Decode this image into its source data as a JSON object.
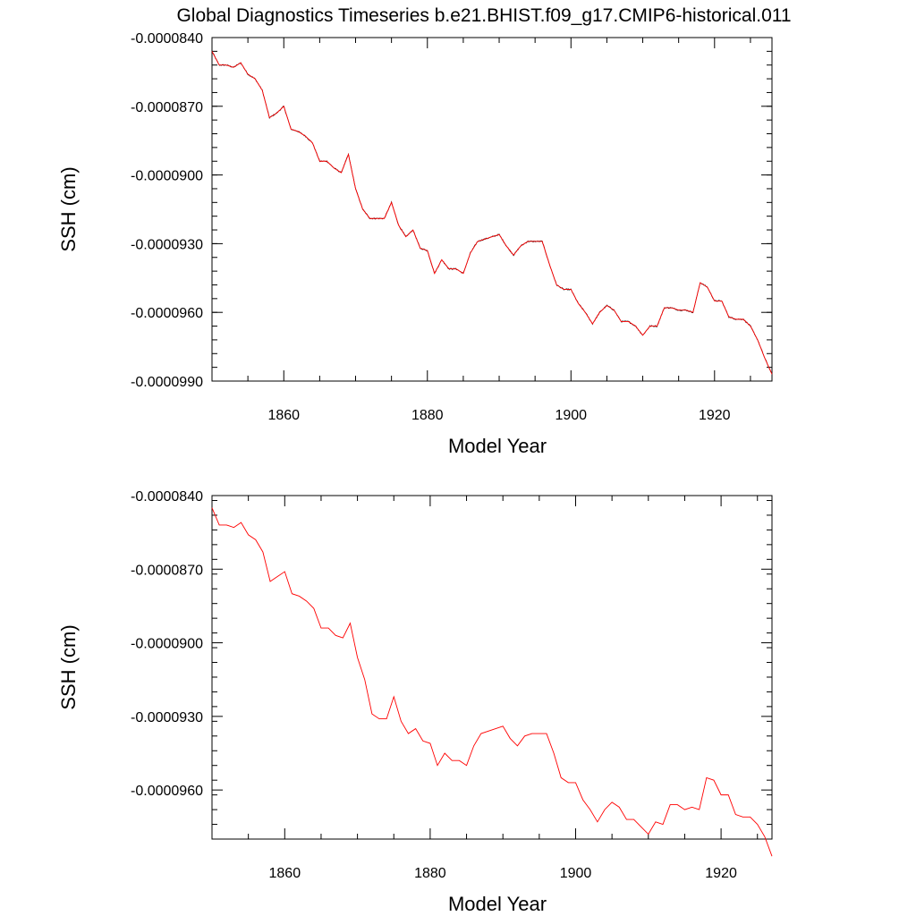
{
  "title": "Global Diagnostics Timeseries b.e21.BHIST.f09_g17.CMIP6-historical.011",
  "colors": {
    "annual": "#ff0000",
    "monthly": "#000000",
    "axes": "#000000"
  },
  "chart_data": [
    {
      "type": "line",
      "xlabel": "Model Year",
      "ylabel": "SSH (cm)",
      "xlim": [
        1850,
        1928
      ],
      "ylim": [
        -9.9e-05,
        -8.4e-05
      ],
      "xticks": [
        1860,
        1880,
        1900,
        1920
      ],
      "xtick_labels": [
        "1860",
        "1880",
        "1900",
        "1920"
      ],
      "yticks": [
        -8.4e-05,
        -8.7e-05,
        -9e-05,
        -9.3e-05,
        -9.6e-05,
        -9.9e-05
      ],
      "ytick_labels": [
        "-0.0000840",
        "-0.0000870",
        "-0.0000900",
        "-0.0000930",
        "-0.0000960",
        "-0.0000990"
      ],
      "grid": false,
      "series": [
        {
          "style": "thin black, monthly noisy series around the red annual line",
          "color": "#000000",
          "noise_amplitude": 3e-08
        },
        {
          "color": "#ff0000",
          "x": [
            1850,
            1851,
            1852,
            1853,
            1854,
            1855,
            1856,
            1857,
            1858,
            1859,
            1860,
            1861,
            1862,
            1863,
            1864,
            1865,
            1866,
            1867,
            1868,
            1869,
            1870,
            1871,
            1872,
            1873,
            1874,
            1875,
            1876,
            1877,
            1878,
            1879,
            1880,
            1881,
            1882,
            1883,
            1884,
            1885,
            1886,
            1887,
            1888,
            1889,
            1890,
            1891,
            1892,
            1893,
            1894,
            1895,
            1896,
            1897,
            1898,
            1899,
            1900,
            1901,
            1902,
            1903,
            1904,
            1905,
            1906,
            1907,
            1908,
            1909,
            1910,
            1911,
            1912,
            1913,
            1914,
            1915,
            1916,
            1917,
            1918,
            1919,
            1920,
            1921,
            1922,
            1923,
            1924,
            1925,
            1926,
            1927,
            1928
          ],
          "y": [
            -8.46e-05,
            -8.52e-05,
            -8.52e-05,
            -8.53e-05,
            -8.51e-05,
            -8.56e-05,
            -8.58e-05,
            -8.63e-05,
            -8.75e-05,
            -8.73e-05,
            -8.7e-05,
            -8.8e-05,
            -8.81e-05,
            -8.83e-05,
            -8.86e-05,
            -8.94e-05,
            -8.94e-05,
            -8.97e-05,
            -8.99e-05,
            -8.91e-05,
            -9.06e-05,
            -9.15e-05,
            -9.19e-05,
            -9.19e-05,
            -9.19e-05,
            -9.12e-05,
            -9.22e-05,
            -9.27e-05,
            -9.24e-05,
            -9.32e-05,
            -9.33e-05,
            -9.43e-05,
            -9.37e-05,
            -9.41e-05,
            -9.41e-05,
            -9.43e-05,
            -9.34e-05,
            -9.29e-05,
            -9.28e-05,
            -9.27e-05,
            -9.26e-05,
            -9.31e-05,
            -9.35e-05,
            -9.31e-05,
            -9.29e-05,
            -9.29e-05,
            -9.29e-05,
            -9.39e-05,
            -9.48e-05,
            -9.5e-05,
            -9.5e-05,
            -9.56e-05,
            -9.6e-05,
            -9.65e-05,
            -9.6e-05,
            -9.57e-05,
            -9.59e-05,
            -9.64e-05,
            -9.64e-05,
            -9.66e-05,
            -9.7e-05,
            -9.66e-05,
            -9.66e-05,
            -9.58e-05,
            -9.58e-05,
            -9.59e-05,
            -9.59e-05,
            -9.6e-05,
            -9.47e-05,
            -9.49e-05,
            -9.55e-05,
            -9.55e-05,
            -9.62e-05,
            -9.63e-05,
            -9.63e-05,
            -9.66e-05,
            -9.72e-05,
            -9.8e-05,
            -9.87e-05
          ]
        }
      ]
    },
    {
      "type": "line",
      "xlabel": "Model Year",
      "ylabel": "SSH (cm)",
      "xlim": [
        1850,
        1927
      ],
      "ylim": [
        -9.8e-05,
        -8.4e-05
      ],
      "xticks": [
        1860,
        1880,
        1900,
        1920
      ],
      "xtick_labels": [
        "1860",
        "1880",
        "1900",
        "1920"
      ],
      "yticks": [
        -8.4e-05,
        -8.7e-05,
        -9e-05,
        -9.3e-05,
        -9.6e-05
      ],
      "ytick_labels": [
        "-0.0000840",
        "-0.0000870",
        "-0.0000900",
        "-0.0000930",
        "-0.0000960"
      ],
      "grid": false,
      "series": [
        {
          "color": "#ff0000",
          "x": [
            1850,
            1851,
            1852,
            1853,
            1854,
            1855,
            1856,
            1857,
            1858,
            1859,
            1860,
            1861,
            1862,
            1863,
            1864,
            1865,
            1866,
            1867,
            1868,
            1869,
            1870,
            1871,
            1872,
            1873,
            1874,
            1875,
            1876,
            1877,
            1878,
            1879,
            1880,
            1881,
            1882,
            1883,
            1884,
            1885,
            1886,
            1887,
            1888,
            1889,
            1890,
            1891,
            1892,
            1893,
            1894,
            1895,
            1896,
            1897,
            1898,
            1899,
            1900,
            1901,
            1902,
            1903,
            1904,
            1905,
            1906,
            1907,
            1908,
            1909,
            1910,
            1911,
            1912,
            1913,
            1914,
            1915,
            1916,
            1917,
            1918,
            1919,
            1920,
            1921,
            1922,
            1923,
            1924,
            1925,
            1926,
            1927
          ],
          "y": [
            -8.45e-05,
            -8.52e-05,
            -8.52e-05,
            -8.53e-05,
            -8.51e-05,
            -8.56e-05,
            -8.58e-05,
            -8.63e-05,
            -8.75e-05,
            -8.73e-05,
            -8.71e-05,
            -8.8e-05,
            -8.81e-05,
            -8.83e-05,
            -8.86e-05,
            -8.94e-05,
            -8.94e-05,
            -8.97e-05,
            -8.98e-05,
            -8.92e-05,
            -9.06e-05,
            -9.15e-05,
            -9.29e-05,
            -9.31e-05,
            -9.31e-05,
            -9.22e-05,
            -9.32e-05,
            -9.37e-05,
            -9.35e-05,
            -9.4e-05,
            -9.41e-05,
            -9.5e-05,
            -9.45e-05,
            -9.48e-05,
            -9.48e-05,
            -9.5e-05,
            -9.42e-05,
            -9.37e-05,
            -9.36e-05,
            -9.35e-05,
            -9.34e-05,
            -9.39e-05,
            -9.42e-05,
            -9.38e-05,
            -9.37e-05,
            -9.37e-05,
            -9.37e-05,
            -9.45e-05,
            -9.55e-05,
            -9.57e-05,
            -9.57e-05,
            -9.64e-05,
            -9.68e-05,
            -9.73e-05,
            -9.68e-05,
            -9.65e-05,
            -9.67e-05,
            -9.72e-05,
            -9.72e-05,
            -9.75e-05,
            -9.78e-05,
            -9.73e-05,
            -9.74e-05,
            -9.66e-05,
            -9.66e-05,
            -9.68e-05,
            -9.67e-05,
            -9.68e-05,
            -9.55e-05,
            -9.56e-05,
            -9.62e-05,
            -9.62e-05,
            -9.7e-05,
            -9.71e-05,
            -9.71e-05,
            -9.74e-05,
            -9.79e-05,
            -9.87e-05
          ]
        }
      ]
    }
  ]
}
